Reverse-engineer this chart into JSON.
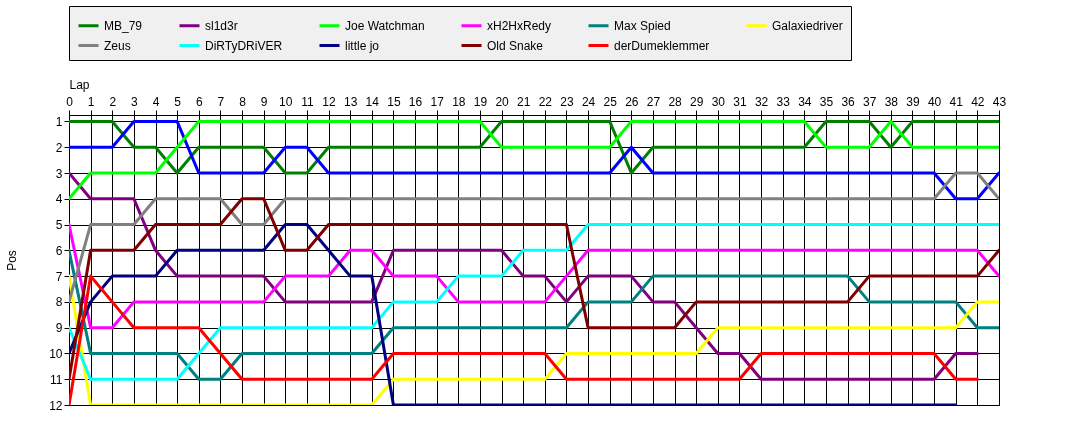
{
  "chart_data": {
    "type": "line",
    "xlabel": "Lap",
    "ylabel": "Pos",
    "x": [
      0,
      1,
      2,
      3,
      4,
      5,
      6,
      7,
      8,
      9,
      10,
      11,
      12,
      13,
      14,
      15,
      16,
      17,
      18,
      19,
      20,
      21,
      22,
      23,
      24,
      25,
      26,
      27,
      28,
      29,
      30,
      31,
      32,
      33,
      34,
      35,
      36,
      37,
      38,
      39,
      40,
      41,
      42,
      43
    ],
    "xlim": [
      0,
      43
    ],
    "xticks": [
      0,
      1,
      2,
      3,
      4,
      5,
      6,
      7,
      8,
      9,
      10,
      11,
      12,
      13,
      14,
      15,
      16,
      17,
      18,
      19,
      20,
      21,
      22,
      23,
      24,
      25,
      26,
      27,
      28,
      29,
      30,
      31,
      32,
      33,
      34,
      35,
      36,
      37,
      38,
      39,
      40,
      41,
      42,
      43
    ],
    "ylim": [
      12,
      0.75
    ],
    "yticks": [
      1,
      2,
      3,
      4,
      5,
      6,
      7,
      8,
      9,
      10,
      11,
      12
    ],
    "grid": true,
    "legend": "top",
    "marker": "none",
    "line_style": "solid",
    "series": [
      {
        "name": "MB_79",
        "color": "#008000",
        "values": [
          1,
          1,
          1,
          2,
          2,
          3,
          2,
          2,
          2,
          2,
          3,
          3,
          2,
          2,
          2,
          2,
          2,
          2,
          2,
          2,
          1,
          1,
          1,
          1,
          1,
          1,
          3,
          2,
          2,
          2,
          2,
          2,
          2,
          2,
          2,
          1,
          1,
          1,
          2,
          1,
          1,
          1,
          1,
          1
        ]
      },
      {
        "color": "#0000ff",
        "values": [
          2,
          2,
          2,
          1,
          1,
          1,
          3,
          3,
          3,
          3,
          2,
          2,
          3,
          3,
          3,
          3,
          3,
          3,
          3,
          3,
          3,
          3,
          3,
          3,
          3,
          3,
          2,
          3,
          3,
          3,
          3,
          3,
          3,
          3,
          3,
          3,
          3,
          3,
          3,
          3,
          3,
          4,
          4,
          3
        ]
      },
      {
        "name": "sl1d3r",
        "color": "#800080",
        "values": [
          3,
          4,
          4,
          4,
          6,
          7,
          7,
          7,
          7,
          7,
          8,
          8,
          8,
          8,
          8,
          6,
          6,
          6,
          6,
          6,
          6,
          7,
          7,
          8,
          7,
          7,
          7,
          8,
          8,
          9,
          10,
          10,
          11,
          11,
          11,
          11,
          11,
          11,
          11,
          11,
          11,
          10,
          10,
          null
        ]
      },
      {
        "name": "Joe Watchman",
        "color": "#00ff00",
        "values": [
          4,
          3,
          3,
          3,
          3,
          2,
          1,
          1,
          1,
          1,
          1,
          1,
          1,
          1,
          1,
          1,
          1,
          1,
          1,
          1,
          2,
          2,
          2,
          2,
          2,
          2,
          1,
          1,
          1,
          1,
          1,
          1,
          1,
          1,
          1,
          2,
          2,
          2,
          1,
          2,
          2,
          2,
          2,
          2
        ]
      },
      {
        "name": "xH2HxRedy",
        "color": "#ff00ff",
        "values": [
          5,
          9,
          9,
          8,
          8,
          8,
          8,
          8,
          8,
          8,
          7,
          7,
          7,
          6,
          6,
          7,
          7,
          7,
          8,
          8,
          8,
          8,
          8,
          7,
          6,
          6,
          6,
          6,
          6,
          6,
          6,
          6,
          6,
          6,
          6,
          6,
          6,
          6,
          6,
          6,
          6,
          6,
          6,
          7
        ]
      },
      {
        "name": "Max Spied",
        "color": "#008080",
        "values": [
          6,
          10,
          10,
          10,
          10,
          10,
          11,
          11,
          10,
          10,
          10,
          10,
          10,
          10,
          10,
          9,
          9,
          9,
          9,
          9,
          9,
          9,
          9,
          9,
          8,
          8,
          8,
          7,
          7,
          7,
          7,
          7,
          7,
          7,
          7,
          7,
          7,
          8,
          8,
          8,
          8,
          8,
          9,
          9
        ]
      },
      {
        "name": "Galaxiedriver",
        "color": "#ffff00",
        "values": [
          7,
          12,
          12,
          12,
          12,
          12,
          12,
          12,
          12,
          12,
          12,
          12,
          12,
          12,
          12,
          11,
          11,
          11,
          11,
          11,
          11,
          11,
          11,
          10,
          10,
          10,
          10,
          10,
          10,
          10,
          9,
          9,
          9,
          9,
          9,
          9,
          9,
          9,
          9,
          9,
          9,
          9,
          8,
          8
        ]
      },
      {
        "name": "Zeus",
        "color": "#808080",
        "values": [
          8,
          5,
          5,
          5,
          4,
          4,
          4,
          4,
          5,
          5,
          4,
          4,
          4,
          4,
          4,
          4,
          4,
          4,
          4,
          4,
          4,
          4,
          4,
          4,
          4,
          4,
          4,
          4,
          4,
          4,
          4,
          4,
          4,
          4,
          4,
          4,
          4,
          4,
          4,
          4,
          4,
          3,
          3,
          4
        ]
      },
      {
        "name": "DiRTyDRiVER",
        "color": "#00ffff",
        "values": [
          9,
          11,
          11,
          11,
          11,
          11,
          10,
          9,
          9,
          9,
          9,
          9,
          9,
          9,
          9,
          8,
          8,
          8,
          7,
          7,
          7,
          6,
          6,
          6,
          5,
          5,
          5,
          5,
          5,
          5,
          5,
          5,
          5,
          5,
          5,
          5,
          5,
          5,
          5,
          5,
          5,
          5,
          5,
          5
        ]
      },
      {
        "name": "little jo",
        "color": "#000080",
        "values": [
          10,
          8,
          7,
          7,
          7,
          6,
          6,
          6,
          6,
          6,
          5,
          5,
          6,
          7,
          7,
          12,
          12,
          12,
          12,
          12,
          12,
          12,
          12,
          12,
          12,
          12,
          12,
          12,
          12,
          12,
          12,
          12,
          12,
          12,
          12,
          12,
          12,
          12,
          12,
          12,
          12,
          12,
          null,
          null
        ]
      },
      {
        "name": "Old Snake",
        "color": "#800000",
        "values": [
          11,
          6,
          6,
          6,
          5,
          5,
          5,
          5,
          4,
          4,
          6,
          6,
          5,
          5,
          5,
          5,
          5,
          5,
          5,
          5,
          5,
          5,
          5,
          5,
          9,
          9,
          9,
          9,
          9,
          8,
          8,
          8,
          8,
          8,
          8,
          8,
          8,
          7,
          7,
          7,
          7,
          7,
          7,
          6
        ]
      },
      {
        "name": "derDumeklemmer",
        "color": "#ff0000",
        "values": [
          12,
          7,
          8,
          9,
          9,
          9,
          9,
          10,
          11,
          11,
          11,
          11,
          11,
          11,
          11,
          10,
          10,
          10,
          10,
          10,
          10,
          10,
          10,
          11,
          11,
          11,
          11,
          11,
          11,
          11,
          11,
          11,
          10,
          10,
          10,
          10,
          10,
          10,
          10,
          10,
          10,
          11,
          11,
          null
        ]
      }
    ]
  }
}
